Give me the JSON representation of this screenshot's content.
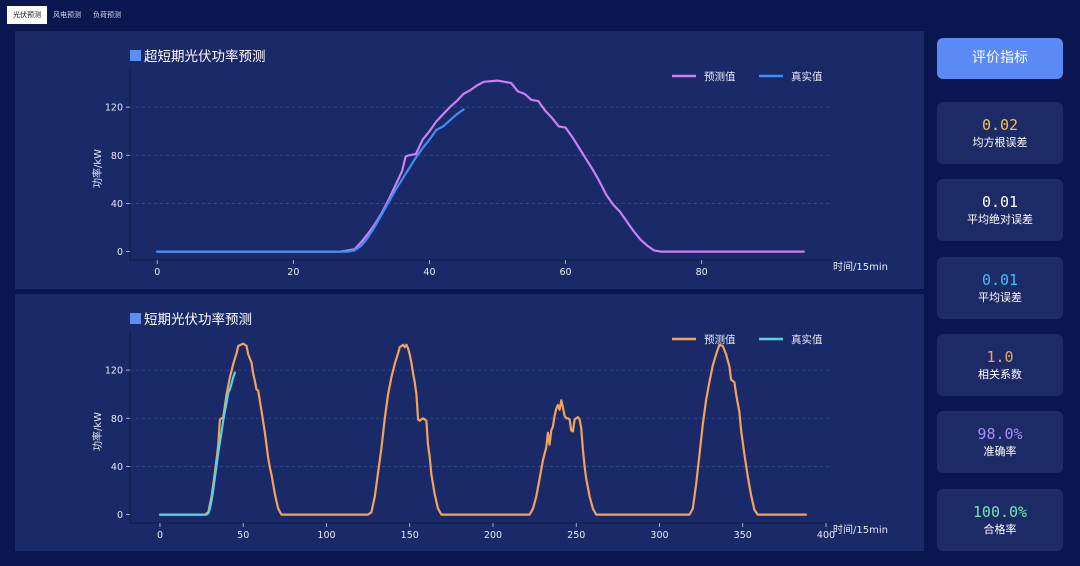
{
  "tabs": [
    {
      "label": "光伏预测",
      "active": true
    },
    {
      "label": "风电预测",
      "active": false
    },
    {
      "label": "负荷预测",
      "active": false
    }
  ],
  "eval_button": "评价指标",
  "metrics": [
    {
      "value": "0.02",
      "label": "均方根误差",
      "color": "#f5c04a"
    },
    {
      "value": "0.01",
      "label": "平均绝对误差",
      "color": "#ffffff"
    },
    {
      "value": "0.01",
      "label": "平均误差",
      "color": "#3cc3f5"
    },
    {
      "value": "1.0",
      "label": "相关系数",
      "color": "#f2a25c"
    },
    {
      "value": "98.0%",
      "label": "准确率",
      "color": "#a98cf5"
    },
    {
      "value": "100.0%",
      "label": "合格率",
      "color": "#6fe8b0"
    }
  ],
  "chart_data": [
    {
      "type": "line",
      "title": "超短期光伏功率预测",
      "xlabel": "时间/15min",
      "ylabel": "功率/kW",
      "xlim": [
        -4,
        99
      ],
      "ylim": [
        -7,
        145
      ],
      "xticks": [
        0,
        20,
        40,
        60,
        80
      ],
      "yticks": [
        0,
        40,
        80,
        120
      ],
      "grid": "horizontal dashed",
      "legend": "top-right",
      "series": [
        {
          "name": "预测值",
          "color": "#cc7ff0",
          "points": [
            [
              0,
              0
            ],
            [
              27,
              0
            ],
            [
              29,
              2
            ],
            [
              30,
              8
            ],
            [
              31,
              15
            ],
            [
              32,
              23
            ],
            [
              33,
              32
            ],
            [
              34,
              43
            ],
            [
              35,
              55
            ],
            [
              36,
              67
            ],
            [
              36.5,
              79
            ],
            [
              37,
              80
            ],
            [
              38,
              81
            ],
            [
              39,
              93
            ],
            [
              40,
              100
            ],
            [
              41,
              108
            ],
            [
              42,
              114
            ],
            [
              43,
              120
            ],
            [
              44,
              125
            ],
            [
              45,
              131
            ],
            [
              46,
              134
            ],
            [
              47,
              138
            ],
            [
              48,
              141
            ],
            [
              50,
              142
            ],
            [
              51,
              141
            ],
            [
              52,
              140
            ],
            [
              53,
              133
            ],
            [
              54,
              131
            ],
            [
              55,
              126
            ],
            [
              56,
              125
            ],
            [
              57,
              117
            ],
            [
              58,
              111
            ],
            [
              59,
              104
            ],
            [
              60,
              103
            ],
            [
              61,
              95
            ],
            [
              62,
              86
            ],
            [
              63,
              77
            ],
            [
              64,
              68
            ],
            [
              65,
              58
            ],
            [
              66,
              47
            ],
            [
              67,
              39
            ],
            [
              68,
              33
            ],
            [
              69,
              25
            ],
            [
              70,
              17
            ],
            [
              71,
              10
            ],
            [
              72,
              5
            ],
            [
              73,
              1
            ],
            [
              74,
              0
            ],
            [
              95,
              0
            ]
          ]
        },
        {
          "name": "真实值",
          "color": "#3d8ef5",
          "points": [
            [
              0,
              0
            ],
            [
              28,
              0
            ],
            [
              29,
              1
            ],
            [
              30,
              5
            ],
            [
              31,
              12
            ],
            [
              32,
              21
            ],
            [
              33,
              31
            ],
            [
              34,
              41
            ],
            [
              35,
              51
            ],
            [
              36,
              60
            ],
            [
              37,
              69
            ],
            [
              38,
              78
            ],
            [
              39,
              86
            ],
            [
              40,
              93
            ],
            [
              41,
              101
            ],
            [
              42,
              104
            ],
            [
              43,
              109
            ],
            [
              44,
              114
            ],
            [
              45,
              118
            ]
          ]
        }
      ]
    },
    {
      "type": "line",
      "title": "短期光伏功率预测",
      "xlabel": "时间/15min",
      "ylabel": "功率/kW",
      "xlim": [
        -18,
        403
      ],
      "ylim": [
        -7,
        145
      ],
      "xticks": [
        0,
        50,
        100,
        150,
        200,
        250,
        300,
        350,
        400
      ],
      "yticks": [
        0,
        40,
        80,
        120
      ],
      "grid": "horizontal dashed",
      "legend": "top-right",
      "series": [
        {
          "name": "预测值",
          "color": "#f2a25c",
          "points": [
            [
              0,
              0
            ],
            [
              27,
              0
            ],
            [
              29,
              2
            ],
            [
              31,
              15
            ],
            [
              33,
              35
            ],
            [
              35,
              57
            ],
            [
              36,
              79
            ],
            [
              37,
              80
            ],
            [
              38,
              81
            ],
            [
              40,
              100
            ],
            [
              42,
              114
            ],
            [
              44,
              125
            ],
            [
              46,
              134
            ],
            [
              47,
              140
            ],
            [
              50,
              142
            ],
            [
              52,
              140
            ],
            [
              53,
              133
            ],
            [
              55,
              126
            ],
            [
              56,
              117
            ],
            [
              57,
              111
            ],
            [
              58,
              104
            ],
            [
              59,
              103
            ],
            [
              61,
              86
            ],
            [
              63,
              68
            ],
            [
              65,
              47
            ],
            [
              66,
              39
            ],
            [
              67,
              33
            ],
            [
              69,
              17
            ],
            [
              71,
              5
            ],
            [
              73,
              0
            ],
            [
              125,
              0
            ],
            [
              127,
              2
            ],
            [
              129,
              15
            ],
            [
              131,
              35
            ],
            [
              133,
              55
            ],
            [
              135,
              80
            ],
            [
              137,
              100
            ],
            [
              139,
              114
            ],
            [
              141,
              125
            ],
            [
              143,
              134
            ],
            [
              144,
              139
            ],
            [
              145,
              140
            ],
            [
              146,
              141
            ],
            [
              147,
              139
            ],
            [
              148,
              141
            ],
            [
              149,
              138
            ],
            [
              150,
              133
            ],
            [
              151,
              126
            ],
            [
              152,
              117
            ],
            [
              153,
              110
            ],
            [
              154,
              100
            ],
            [
              155,
              79
            ],
            [
              156,
              78
            ],
            [
              157,
              79
            ],
            [
              158,
              80
            ],
            [
              159,
              79
            ],
            [
              160,
              78
            ],
            [
              161,
              58
            ],
            [
              162,
              48
            ],
            [
              163,
              33
            ],
            [
              165,
              17
            ],
            [
              167,
              5
            ],
            [
              169,
              0
            ],
            [
              222,
              0
            ],
            [
              224,
              5
            ],
            [
              226,
              15
            ],
            [
              228,
              30
            ],
            [
              230,
              45
            ],
            [
              232,
              56
            ],
            [
              233,
              68
            ],
            [
              234,
              58
            ],
            [
              235,
              70
            ],
            [
              236,
              73
            ],
            [
              237,
              82
            ],
            [
              238,
              88
            ],
            [
              239,
              91
            ],
            [
              240,
              87
            ],
            [
              241,
              95
            ],
            [
              242,
              89
            ],
            [
              243,
              82
            ],
            [
              244,
              80
            ],
            [
              245,
              80
            ],
            [
              246,
              79
            ],
            [
              247,
              70
            ],
            [
              248,
              69
            ],
            [
              249,
              79
            ],
            [
              250,
              80
            ],
            [
              251,
              81
            ],
            [
              252,
              79
            ],
            [
              253,
              72
            ],
            [
              254,
              54
            ],
            [
              255,
              40
            ],
            [
              256,
              30
            ],
            [
              258,
              15
            ],
            [
              260,
              5
            ],
            [
              262,
              0
            ],
            [
              318,
              0
            ],
            [
              320,
              5
            ],
            [
              322,
              25
            ],
            [
              324,
              50
            ],
            [
              326,
              75
            ],
            [
              328,
              95
            ],
            [
              330,
              110
            ],
            [
              332,
              124
            ],
            [
              334,
              133
            ],
            [
              336,
              141
            ],
            [
              338,
              140
            ],
            [
              340,
              133
            ],
            [
              342,
              123
            ],
            [
              343,
              112
            ],
            [
              345,
              110
            ],
            [
              346,
              100
            ],
            [
              348,
              85
            ],
            [
              349,
              70
            ],
            [
              351,
              50
            ],
            [
              353,
              32
            ],
            [
              355,
              16
            ],
            [
              357,
              4
            ],
            [
              359,
              0
            ],
            [
              388,
              0
            ]
          ]
        },
        {
          "name": "真实值",
          "color": "#5ad1e0",
          "points": [
            [
              0,
              0
            ],
            [
              28,
              0
            ],
            [
              29,
              1
            ],
            [
              30,
              5
            ],
            [
              31,
              12
            ],
            [
              32,
              21
            ],
            [
              33,
              31
            ],
            [
              34,
              41
            ],
            [
              35,
              51
            ],
            [
              36,
              60
            ],
            [
              37,
              69
            ],
            [
              38,
              78
            ],
            [
              39,
              86
            ],
            [
              40,
              93
            ],
            [
              41,
              101
            ],
            [
              42,
              104
            ],
            [
              43,
              109
            ],
            [
              44,
              114
            ],
            [
              45,
              118
            ]
          ]
        }
      ]
    }
  ]
}
